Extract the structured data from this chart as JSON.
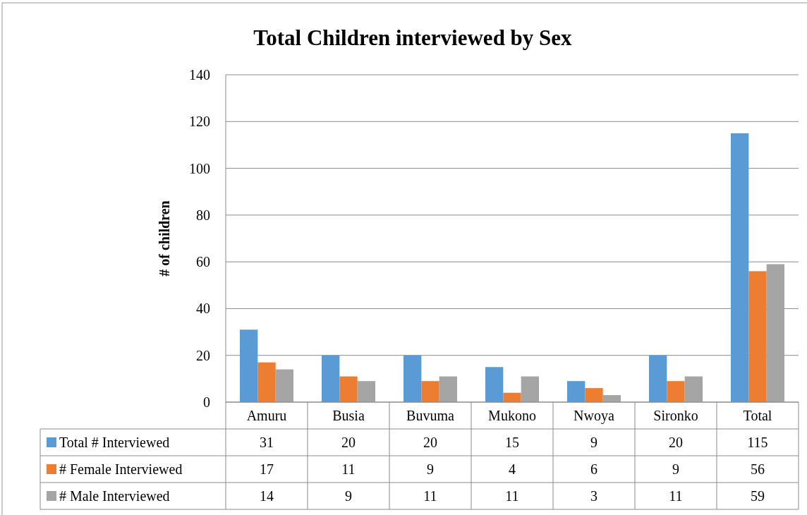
{
  "chart_data": {
    "type": "bar",
    "title": "Total Children interviewed by Sex",
    "ylabel": "# of children",
    "categories": [
      "Amuru",
      "Busia",
      "Buvuma",
      "Mukono",
      "Nwoya",
      "Sironko",
      "Total"
    ],
    "series": [
      {
        "name": "Total # Interviewed",
        "color": "#5b9bd5",
        "values": [
          31,
          20,
          20,
          15,
          9,
          20,
          115
        ]
      },
      {
        "name": "# Female Interviewed",
        "color": "#ed7d31",
        "values": [
          17,
          11,
          9,
          4,
          6,
          9,
          56
        ]
      },
      {
        "name": "# Male Interviewed",
        "color": "#a5a5a5",
        "values": [
          14,
          9,
          11,
          11,
          3,
          11,
          59
        ]
      }
    ],
    "ylim": [
      0,
      140
    ],
    "yticks": [
      0,
      20,
      40,
      60,
      80,
      100,
      120,
      140
    ],
    "grid": "y",
    "legend": "bottom",
    "data_labels": true
  }
}
